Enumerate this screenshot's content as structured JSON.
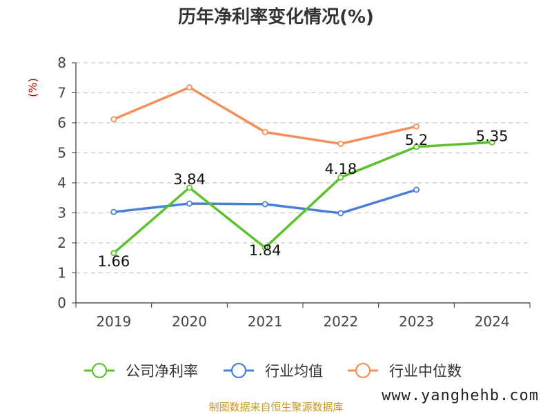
{
  "chart_data": {
    "type": "line",
    "title": "历年净利率变化情况(%)",
    "ylabel": "(%)",
    "xlabel": "",
    "categories": [
      "2019",
      "2020",
      "2021",
      "2022",
      "2023",
      "2024"
    ],
    "ylim": [
      0,
      8
    ],
    "yticks": [
      "0",
      "1",
      "2",
      "3",
      "4",
      "5",
      "6",
      "7",
      "8"
    ],
    "grid": true,
    "legend_position": "bottom",
    "series": [
      {
        "name": "公司净利率",
        "color": "#5cc22b",
        "values": [
          1.66,
          3.84,
          1.84,
          4.18,
          5.2,
          5.35
        ],
        "labels": [
          "1.66",
          "3.84",
          "1.84",
          "4.18",
          "5.2",
          "5.35"
        ]
      },
      {
        "name": "行业均值",
        "color": "#4a7fd8",
        "values": [
          3.03,
          3.31,
          3.29,
          2.99,
          3.77,
          null
        ],
        "labels": []
      },
      {
        "name": "行业中位数",
        "color": "#f58f5a",
        "values": [
          6.12,
          7.18,
          5.69,
          5.3,
          5.88,
          null
        ],
        "labels": []
      }
    ]
  },
  "footer": {
    "source": "制图数据来自恒生聚源数据库",
    "watermark": "www.yanghehb.com"
  }
}
